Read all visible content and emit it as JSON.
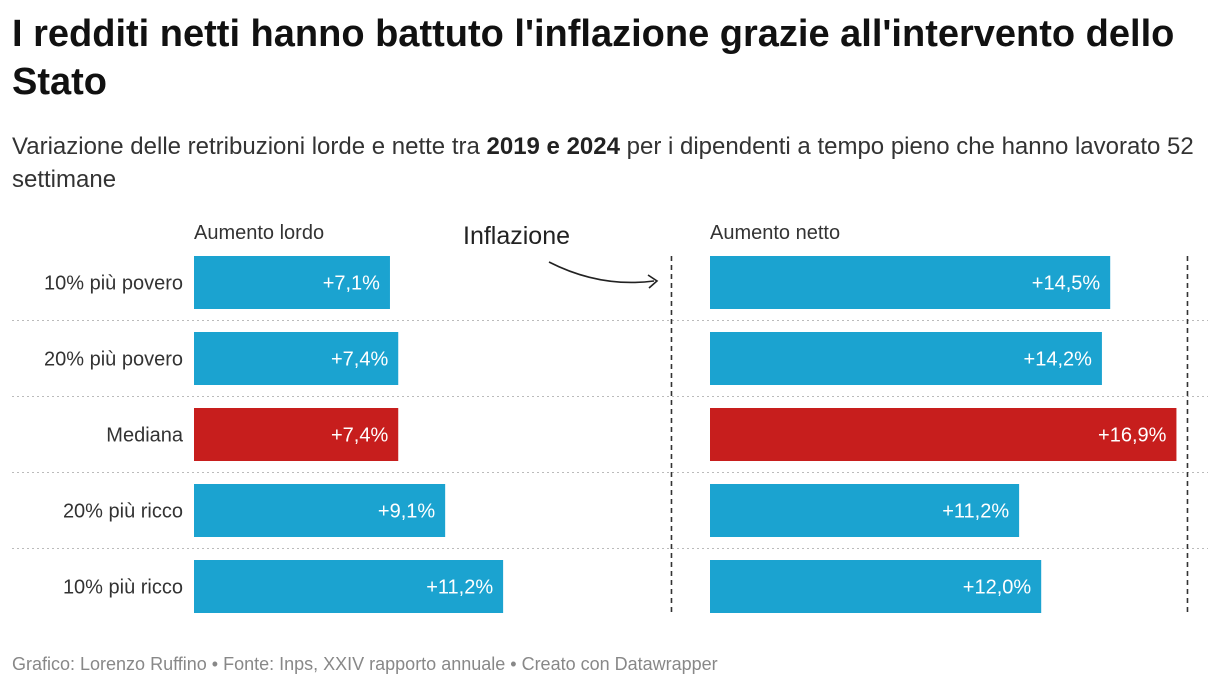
{
  "title": "I redditi netti hanno battuto l'inflazione grazie all'intervento dello Stato",
  "subtitle": {
    "before": "Variazione delle retribuzioni lorde e nette tra ",
    "bold": "2019 e 2024",
    "after": " per i dipendenti a tempo pieno che hanno lavorato 52 settimane"
  },
  "footer": "Grafico: Lorenzo Ruffino • Fonte: Inps, XXIV rapporto annuale • Creato con Datawrapper",
  "colors": {
    "bar": "#1ba3d0",
    "highlight": "#c71e1d",
    "bar_label": "#ffffff",
    "row_label": "#333333",
    "separator": "#bbbbbb",
    "reference_line": "#333333"
  },
  "chart_data": [
    {
      "type": "bar",
      "orientation": "horizontal",
      "title": "Aumento lordo",
      "categories": [
        "10% più povero",
        "20% più povero",
        "Mediana",
        "20% più ricco",
        "10% più ricco"
      ],
      "values": [
        7.1,
        7.4,
        7.4,
        9.1,
        11.2
      ],
      "value_labels": [
        "+7,1%",
        "+7,4%",
        "+7,4%",
        "+9,1%",
        "+11,2%"
      ],
      "highlight": [
        "Mediana"
      ],
      "xlim": [
        0,
        17.5
      ],
      "reference_line": {
        "label": "Inflazione",
        "value": 17.3
      }
    },
    {
      "type": "bar",
      "orientation": "horizontal",
      "title": "Aumento netto",
      "categories": [
        "10% più povero",
        "20% più povero",
        "Mediana",
        "20% più ricco",
        "10% più ricco"
      ],
      "values": [
        14.5,
        14.2,
        16.9,
        11.2,
        12.0
      ],
      "value_labels": [
        "+14,5%",
        "+14,2%",
        "+16,9%",
        "+11,2%",
        "+12,0%"
      ],
      "highlight": [
        "Mediana"
      ],
      "xlim": [
        0,
        17.5
      ],
      "reference_line": {
        "value": 17.3
      }
    }
  ]
}
